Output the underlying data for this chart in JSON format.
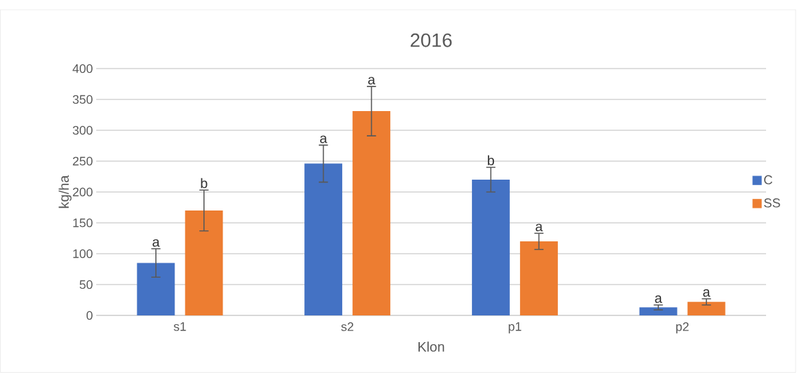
{
  "chart_data": {
    "type": "bar",
    "title": "2016",
    "xlabel": "Klon",
    "ylabel": "kg/ha",
    "categories": [
      "s1",
      "s2",
      "p1",
      "p2"
    ],
    "series": [
      {
        "name": "C",
        "color": "#4472c4",
        "values": [
          85,
          246,
          220,
          13
        ],
        "errors": [
          23,
          30,
          20,
          4
        ]
      },
      {
        "name": "SS",
        "color": "#ed7d31",
        "values": [
          170,
          331,
          120,
          22
        ],
        "errors": [
          33,
          40,
          13,
          5
        ]
      }
    ],
    "ylim": [
      0,
      400
    ],
    "yticks": [
      0,
      50,
      100,
      150,
      200,
      250,
      300,
      350,
      400
    ],
    "grid": "y",
    "legend": "right",
    "annotations": [
      "a",
      "b",
      "a",
      "a",
      "b",
      "a",
      "a",
      "a"
    ]
  }
}
